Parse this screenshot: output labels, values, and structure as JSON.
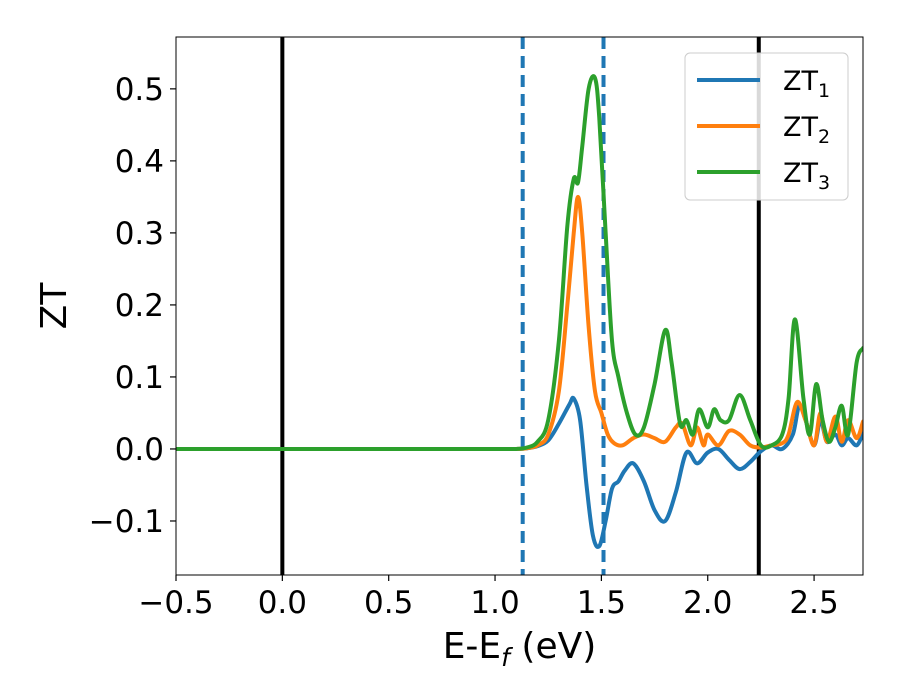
{
  "chart_data": {
    "type": "line",
    "xlabel": "E-E",
    "xlabel_subscript": "f",
    "xlabel_unit": " (eV)",
    "ylabel": "ZT",
    "xlim": [
      -0.5,
      2.73
    ],
    "ylim": [
      -0.175,
      0.572
    ],
    "xticks": [
      -0.5,
      0.0,
      0.5,
      1.0,
      1.5,
      2.0,
      2.5
    ],
    "xtick_labels": [
      "−0.5",
      "0.0",
      "0.5",
      "1.0",
      "1.5",
      "2.0",
      "2.5"
    ],
    "yticks": [
      -0.1,
      0.0,
      0.1,
      0.2,
      0.3,
      0.4,
      0.5
    ],
    "ytick_labels": [
      "−0.1",
      "0.0",
      "0.1",
      "0.2",
      "0.3",
      "0.4",
      "0.5"
    ],
    "grid": false,
    "legend_position": "top-right",
    "vertical_lines": [
      {
        "x": 0.0,
        "style": "solid",
        "color": "#000000"
      },
      {
        "x": 1.13,
        "style": "dashed",
        "color": "#1f77b4"
      },
      {
        "x": 1.51,
        "style": "dashed",
        "color": "#1f77b4"
      },
      {
        "x": 2.24,
        "style": "solid",
        "color": "#000000"
      }
    ],
    "series": [
      {
        "name": "ZT",
        "subscript": "1",
        "color": "#1f77b4",
        "x": [
          -0.5,
          0.0,
          0.5,
          1.0,
          1.1,
          1.15,
          1.2,
          1.25,
          1.3,
          1.35,
          1.37,
          1.4,
          1.43,
          1.46,
          1.49,
          1.52,
          1.55,
          1.58,
          1.61,
          1.65,
          1.7,
          1.75,
          1.8,
          1.85,
          1.9,
          1.95,
          2.0,
          2.05,
          2.1,
          2.15,
          2.2,
          2.25,
          2.3,
          2.35,
          2.4,
          2.43,
          2.46,
          2.5,
          2.53,
          2.56,
          2.6,
          2.63,
          2.66,
          2.7,
          2.73
        ],
        "y": [
          0,
          0,
          0,
          0,
          0,
          0.001,
          0.004,
          0.012,
          0.035,
          0.062,
          0.07,
          0.04,
          -0.05,
          -0.12,
          -0.135,
          -0.1,
          -0.055,
          -0.045,
          -0.03,
          -0.02,
          -0.045,
          -0.085,
          -0.1,
          -0.06,
          -0.005,
          -0.02,
          -0.005,
          0.0,
          -0.015,
          -0.028,
          -0.018,
          -0.003,
          0.005,
          0.0,
          0.02,
          0.06,
          0.04,
          0.005,
          0.04,
          0.01,
          0.02,
          0.005,
          0.015,
          0.005,
          0.022
        ]
      },
      {
        "name": "ZT",
        "subscript": "2",
        "color": "#ff7f0e",
        "x": [
          -0.5,
          0.0,
          0.5,
          1.0,
          1.1,
          1.15,
          1.2,
          1.25,
          1.3,
          1.34,
          1.37,
          1.39,
          1.41,
          1.44,
          1.47,
          1.5,
          1.53,
          1.56,
          1.6,
          1.65,
          1.7,
          1.75,
          1.8,
          1.85,
          1.88,
          1.92,
          1.95,
          1.98,
          2.0,
          2.05,
          2.1,
          2.15,
          2.2,
          2.25,
          2.3,
          2.35,
          2.38,
          2.42,
          2.46,
          2.5,
          2.53,
          2.56,
          2.6,
          2.63,
          2.66,
          2.7,
          2.73
        ],
        "y": [
          0,
          0,
          0,
          0,
          0,
          0.001,
          0.005,
          0.02,
          0.08,
          0.2,
          0.3,
          0.35,
          0.3,
          0.17,
          0.08,
          0.05,
          0.02,
          0.008,
          0.005,
          0.015,
          0.02,
          0.015,
          0.01,
          0.03,
          0.035,
          0.005,
          0.03,
          0.005,
          0.02,
          0.005,
          0.025,
          0.02,
          0.005,
          0.002,
          0.005,
          0.008,
          0.02,
          0.065,
          0.04,
          0.005,
          0.05,
          0.01,
          0.045,
          0.01,
          0.04,
          0.015,
          0.038
        ]
      },
      {
        "name": "ZT",
        "subscript": "3",
        "color": "#2ca02c",
        "x": [
          -0.5,
          0.0,
          0.5,
          1.0,
          1.1,
          1.15,
          1.2,
          1.25,
          1.3,
          1.34,
          1.37,
          1.39,
          1.41,
          1.44,
          1.47,
          1.49,
          1.52,
          1.55,
          1.58,
          1.62,
          1.66,
          1.7,
          1.75,
          1.8,
          1.83,
          1.87,
          1.9,
          1.93,
          1.96,
          2.0,
          2.03,
          2.06,
          2.1,
          2.15,
          2.2,
          2.25,
          2.3,
          2.35,
          2.38,
          2.41,
          2.45,
          2.48,
          2.51,
          2.54,
          2.57,
          2.6,
          2.63,
          2.66,
          2.7,
          2.73
        ],
        "y": [
          0,
          0,
          0,
          0,
          0,
          0.002,
          0.01,
          0.04,
          0.15,
          0.31,
          0.375,
          0.37,
          0.42,
          0.5,
          0.515,
          0.46,
          0.3,
          0.15,
          0.1,
          0.05,
          0.02,
          0.03,
          0.09,
          0.165,
          0.12,
          0.035,
          0.04,
          0.02,
          0.055,
          0.03,
          0.055,
          0.04,
          0.04,
          0.075,
          0.04,
          0.005,
          0.005,
          0.02,
          0.07,
          0.18,
          0.07,
          0.02,
          0.09,
          0.04,
          0.01,
          0.03,
          0.06,
          0.02,
          0.12,
          0.14
        ]
      }
    ]
  }
}
